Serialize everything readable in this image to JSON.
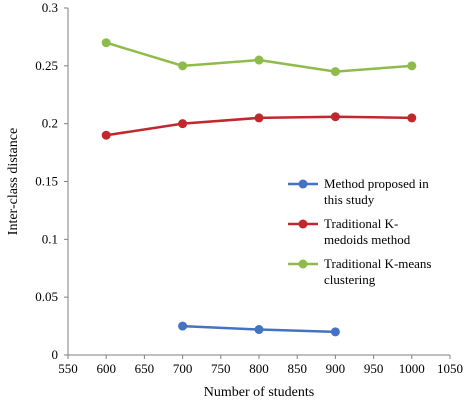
{
  "chart_data": {
    "type": "line",
    "xlabel": "Number of students",
    "ylabel": "Inter-class distance",
    "xlim": [
      550,
      1050
    ],
    "ylim": [
      0,
      0.3
    ],
    "x_ticks": [
      550,
      600,
      650,
      700,
      750,
      800,
      850,
      900,
      950,
      1000,
      1050
    ],
    "y_ticks": [
      0,
      0.05,
      0.1,
      0.15,
      0.2,
      0.25,
      0.3
    ],
    "x_tick_labels": [
      "550",
      "600",
      "650",
      "700",
      "750",
      "800",
      "850",
      "900",
      "950",
      "1000",
      "1050"
    ],
    "y_tick_labels": [
      "0",
      "0.05",
      "0.1",
      "0.15",
      "0.2",
      "0.25",
      "0.3"
    ],
    "grid": false,
    "legend_position": "right-middle",
    "series": [
      {
        "name_lines": [
          "Method proposed in",
          "this study"
        ],
        "color": "#4472c4",
        "points": [
          [
            700,
            0.025
          ],
          [
            800,
            0.022
          ],
          [
            900,
            0.02
          ]
        ]
      },
      {
        "name_lines": [
          "Traditional K-",
          "medoids method"
        ],
        "color": "#c0282d",
        "points": [
          [
            600,
            0.19
          ],
          [
            700,
            0.2
          ],
          [
            800,
            0.205
          ],
          [
            900,
            0.206
          ],
          [
            1000,
            0.205
          ]
        ]
      },
      {
        "name_lines": [
          "Traditional K-means",
          "clustering"
        ],
        "color": "#8fbb4b",
        "points": [
          [
            600,
            0.27
          ],
          [
            700,
            0.25
          ],
          [
            800,
            0.255
          ],
          [
            900,
            0.245
          ],
          [
            1000,
            0.25
          ]
        ]
      }
    ]
  }
}
